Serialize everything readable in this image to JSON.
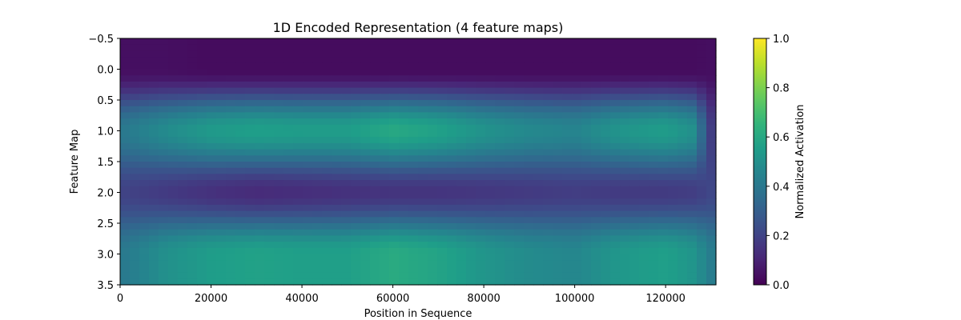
{
  "chart_data": {
    "type": "heatmap",
    "title": "1D Encoded Representation (4 feature maps)",
    "xlabel": "Position in Sequence",
    "ylabel": "Feature Map",
    "xlim": [
      0,
      131072
    ],
    "ylim": [
      3.5,
      -0.5
    ],
    "xticks": [
      0,
      20000,
      40000,
      60000,
      80000,
      100000,
      120000
    ],
    "yticks": [
      -0.5,
      0.0,
      0.5,
      1.0,
      1.5,
      2.0,
      2.5,
      3.0,
      3.5
    ],
    "xtick_labels": [
      "0",
      "20000",
      "40000",
      "60000",
      "80000",
      "100000",
      "120000"
    ],
    "ytick_labels": [
      "−0.5",
      "0.0",
      "0.5",
      "1.0",
      "1.5",
      "2.0",
      "2.5",
      "3.0",
      "3.5"
    ],
    "colormap": "viridis",
    "interpolation": "smooth",
    "rows": [
      {
        "feature_map": 0,
        "x": [
          0,
          10000,
          20000,
          30000,
          40000,
          50000,
          60000,
          70000,
          80000,
          90000,
          100000,
          110000,
          120000,
          126000,
          131072
        ],
        "values": [
          0.04,
          0.04,
          0.03,
          0.03,
          0.03,
          0.03,
          0.03,
          0.03,
          0.03,
          0.03,
          0.03,
          0.03,
          0.03,
          0.03,
          0.04
        ]
      },
      {
        "feature_map": 1,
        "x": [
          0,
          10000,
          20000,
          30000,
          40000,
          50000,
          60000,
          70000,
          80000,
          90000,
          100000,
          110000,
          120000,
          126000,
          131072
        ],
        "values": [
          0.4,
          0.48,
          0.54,
          0.56,
          0.55,
          0.55,
          0.6,
          0.57,
          0.51,
          0.47,
          0.45,
          0.52,
          0.55,
          0.5,
          0.1
        ]
      },
      {
        "feature_map": 2,
        "x": [
          0,
          10000,
          20000,
          30000,
          40000,
          50000,
          60000,
          70000,
          80000,
          90000,
          100000,
          110000,
          120000,
          126000,
          131072
        ],
        "values": [
          0.2,
          0.17,
          0.14,
          0.12,
          0.13,
          0.14,
          0.15,
          0.15,
          0.16,
          0.17,
          0.18,
          0.17,
          0.17,
          0.18,
          0.22
        ]
      },
      {
        "feature_map": 3,
        "x": [
          0,
          10000,
          20000,
          30000,
          40000,
          50000,
          60000,
          70000,
          80000,
          90000,
          100000,
          110000,
          120000,
          126000,
          131072
        ],
        "values": [
          0.4,
          0.5,
          0.55,
          0.57,
          0.56,
          0.56,
          0.61,
          0.58,
          0.52,
          0.48,
          0.46,
          0.53,
          0.56,
          0.52,
          0.4
        ]
      }
    ],
    "colorbar": {
      "label": "Normalized Activation",
      "range": [
        0.0,
        1.0
      ],
      "ticks": [
        0.0,
        0.2,
        0.4,
        0.6,
        0.8,
        1.0
      ],
      "tick_labels": [
        "0.0",
        "0.2",
        "0.4",
        "0.6",
        "0.8",
        "1.0"
      ]
    }
  }
}
